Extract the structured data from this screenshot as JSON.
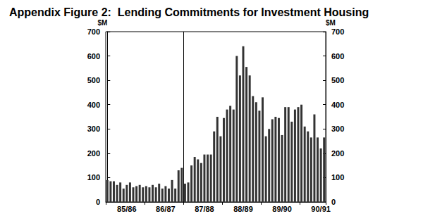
{
  "chart_data": {
    "type": "bar",
    "title": "Appendix Figure 2:  Lending Commitments for Investment Housing",
    "ylabel": "$M",
    "categories": [
      null,
      null,
      null,
      null,
      null,
      null,
      "85/86",
      null,
      null,
      null,
      null,
      null,
      null,
      null,
      null,
      null,
      null,
      null,
      "86/87",
      null,
      null,
      null,
      null,
      null,
      null,
      null,
      null,
      null,
      null,
      null,
      "87/88",
      null,
      null,
      null,
      null,
      null,
      null,
      null,
      null,
      null,
      null,
      null,
      "88/89",
      null,
      null,
      null,
      null,
      null,
      null,
      null,
      null,
      null,
      null,
      null,
      "89/90",
      null,
      null,
      null,
      null,
      null,
      null,
      null,
      null,
      null,
      null,
      null,
      "90/91",
      null
    ],
    "values": [
      90,
      85,
      85,
      70,
      80,
      55,
      70,
      80,
      60,
      65,
      70,
      60,
      65,
      60,
      70,
      60,
      75,
      55,
      65,
      55,
      90,
      55,
      130,
      140,
      75,
      80,
      150,
      185,
      175,
      160,
      195,
      195,
      195,
      290,
      350,
      270,
      345,
      380,
      395,
      380,
      600,
      520,
      640,
      555,
      520,
      435,
      410,
      375,
      430,
      270,
      300,
      340,
      350,
      345,
      275,
      390,
      390,
      330,
      380,
      390,
      400,
      310,
      290,
      265,
      360,
      265,
      220,
      265
    ],
    "color": "#333333",
    "divider": 23.5,
    "ylim": [
      0,
      700
    ],
    "yticks": [
      0,
      100,
      200,
      300,
      400,
      500,
      600,
      700
    ],
    "grid": false
  }
}
